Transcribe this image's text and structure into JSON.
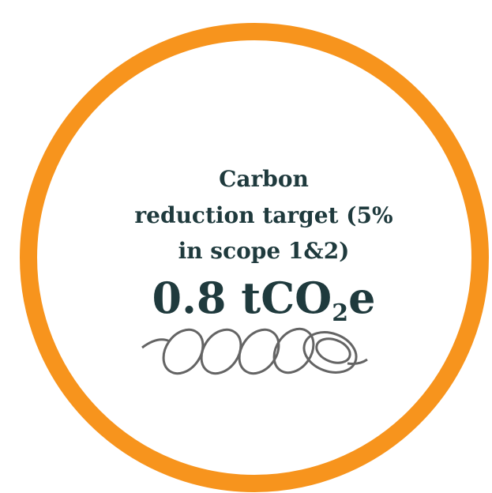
{
  "badge": {
    "label_lines": [
      "Carbon",
      "reduction target (5%",
      "in scope 1&2)"
    ],
    "value": {
      "main": "0.8 tCO",
      "subscript": "2",
      "suffix": "e"
    }
  }
}
